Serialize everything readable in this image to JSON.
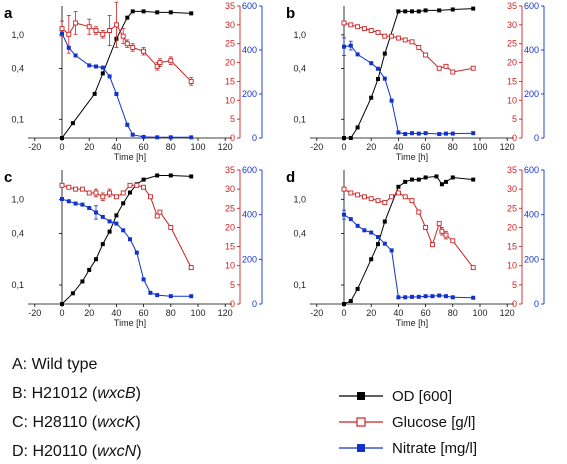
{
  "colors": {
    "od": "#000000",
    "glucose": "#cc2222",
    "nitrate": "#1133cc"
  },
  "legend": [
    {
      "key": "od",
      "label": "OD [600]",
      "marker": "filled-square"
    },
    {
      "key": "glucose",
      "label": "Glucose [g/l]",
      "marker": "open-square"
    },
    {
      "key": "nitrate",
      "label": "Nitrate [mg/l]",
      "marker": "filled-square"
    }
  ],
  "strain_key": [
    {
      "prefix": "A: Wild type",
      "gene": ""
    },
    {
      "prefix": "B: H21012 (",
      "gene": "wxcB",
      "suffix": ")"
    },
    {
      "prefix": "C: H28110 (",
      "gene": "wxcK",
      "suffix": ")"
    },
    {
      "prefix": "D: H20110 (",
      "gene": "wxcN",
      "suffix": ")"
    }
  ],
  "chart_data": [
    {
      "panel": "a",
      "type": "line",
      "xlabel": "Time [h]",
      "xlim": [
        -25,
        125
      ],
      "xticks": [
        "-20",
        "0",
        "20",
        "40",
        "60",
        "80",
        "100",
        "120"
      ],
      "y_od_ticks": [
        "0,1",
        "0,4",
        "1,0"
      ],
      "y_od_scale": "log",
      "y_od_lim": [
        0.06,
        2.2
      ],
      "y_glucose_ticks": [
        "0",
        "5",
        "10",
        "15",
        "20",
        "25",
        "30",
        "35"
      ],
      "y_glucose_lim": [
        0,
        35
      ],
      "y_nitrate_ticks": [
        "0",
        "200",
        "400",
        "600"
      ],
      "y_nitrate_lim": [
        0,
        600
      ],
      "series": [
        {
          "name": "OD [600]",
          "key": "od",
          "x": [
            0,
            8,
            24,
            30,
            40,
            48,
            52,
            60,
            70,
            80,
            95
          ],
          "y": [
            0.06,
            0.09,
            0.2,
            0.35,
            0.9,
            1.6,
            1.9,
            1.9,
            1.85,
            1.85,
            1.8
          ]
        },
        {
          "name": "Glucose [g/l]",
          "key": "glucose",
          "x": [
            0,
            5,
            10,
            20,
            25,
            30,
            35,
            40,
            45,
            48,
            52,
            60,
            70,
            72,
            80,
            95
          ],
          "y": [
            29,
            27.5,
            30.5,
            29.5,
            28.5,
            27.5,
            28.5,
            30,
            27,
            25,
            24,
            23,
            19,
            20,
            20.5,
            15
          ],
          "err": [
            2,
            5,
            3,
            2,
            1,
            1,
            4,
            6,
            2,
            1,
            1,
            1,
            1,
            1,
            1,
            1
          ]
        },
        {
          "name": "Nitrate [mg/l]",
          "key": "nitrate",
          "x": [
            0,
            5,
            10,
            20,
            25,
            30,
            35,
            40,
            48,
            52,
            60,
            70,
            80,
            95
          ],
          "y": [
            475,
            410,
            375,
            330,
            325,
            320,
            280,
            200,
            60,
            15,
            5,
            3,
            3,
            3
          ]
        }
      ]
    },
    {
      "panel": "b",
      "type": "line",
      "xlabel": "Time [h]",
      "xlim": [
        -25,
        125
      ],
      "xticks": [
        "-20",
        "0",
        "20",
        "40",
        "60",
        "80",
        "100",
        "120"
      ],
      "y_od_ticks": [
        "0,1",
        "0,4",
        "1,0"
      ],
      "y_od_scale": "log",
      "y_od_lim": [
        0.06,
        2.2
      ],
      "y_glucose_ticks": [
        "0",
        "5",
        "10",
        "15",
        "20",
        "25",
        "30",
        "35"
      ],
      "y_glucose_lim": [
        0,
        35
      ],
      "y_nitrate_ticks": [
        "0",
        "200",
        "400",
        "600"
      ],
      "y_nitrate_lim": [
        0,
        600
      ],
      "series": [
        {
          "name": "OD [600]",
          "key": "od",
          "x": [
            0,
            5,
            10,
            20,
            25,
            30,
            40,
            45,
            50,
            55,
            60,
            70,
            80,
            95
          ],
          "y": [
            0.06,
            0.06,
            0.08,
            0.18,
            0.3,
            0.6,
            1.9,
            1.9,
            1.9,
            1.9,
            1.95,
            1.95,
            2.0,
            2.05
          ]
        },
        {
          "name": "Glucose [g/l]",
          "key": "glucose",
          "x": [
            0,
            5,
            10,
            15,
            20,
            25,
            30,
            35,
            40,
            45,
            50,
            55,
            60,
            70,
            75,
            80,
            95
          ],
          "y": [
            30.5,
            30,
            29.5,
            29,
            28.5,
            28,
            27,
            27,
            26.5,
            26,
            25.5,
            24,
            22,
            18.5,
            19,
            17.5,
            18.5
          ],
          "err": [
            0,
            0,
            0,
            0,
            0,
            0,
            0,
            0,
            0,
            0,
            0,
            0,
            0,
            0,
            0,
            0,
            0
          ]
        },
        {
          "name": "Nitrate [mg/l]",
          "key": "nitrate",
          "x": [
            0,
            5,
            10,
            20,
            25,
            30,
            35,
            40,
            45,
            50,
            55,
            60,
            70,
            75,
            80,
            95
          ],
          "y": [
            415,
            420,
            380,
            340,
            315,
            270,
            170,
            25,
            18,
            22,
            20,
            22,
            18,
            20,
            20,
            22
          ],
          "err": [
            40,
            20,
            0,
            0,
            0,
            0,
            0,
            0,
            0,
            0,
            0,
            0,
            0,
            0,
            0,
            0
          ]
        }
      ]
    },
    {
      "panel": "c",
      "type": "line",
      "xlabel": "Time [h]",
      "xlim": [
        -25,
        125
      ],
      "xticks": [
        "-20",
        "0",
        "20",
        "40",
        "60",
        "80",
        "100",
        "120"
      ],
      "y_od_ticks": [
        "0,1",
        "0,4",
        "1,0"
      ],
      "y_od_scale": "log",
      "y_od_lim": [
        0.06,
        2.2
      ],
      "y_glucose_ticks": [
        "0",
        "5",
        "10",
        "15",
        "20",
        "25",
        "30",
        "35"
      ],
      "y_glucose_lim": [
        0,
        35
      ],
      "y_nitrate_ticks": [
        "0",
        "200",
        "400",
        "600"
      ],
      "y_nitrate_lim": [
        0,
        600
      ],
      "series": [
        {
          "name": "OD [600]",
          "key": "od",
          "x": [
            0,
            8,
            15,
            20,
            25,
            30,
            35,
            40,
            45,
            50,
            55,
            60,
            70,
            80,
            95
          ],
          "y": [
            0.06,
            0.08,
            0.11,
            0.15,
            0.2,
            0.3,
            0.42,
            0.65,
            0.9,
            1.2,
            1.5,
            1.7,
            1.9,
            1.9,
            1.85
          ]
        },
        {
          "name": "Glucose [g/l]",
          "key": "glucose",
          "x": [
            0,
            5,
            10,
            15,
            20,
            25,
            30,
            35,
            40,
            45,
            50,
            55,
            60,
            65,
            70,
            72,
            80,
            95
          ],
          "y": [
            31,
            30.5,
            30,
            30,
            29,
            29,
            28,
            29,
            28,
            29,
            31,
            31,
            30.5,
            28,
            23,
            24,
            20,
            9.5
          ],
          "err": [
            0,
            0,
            0,
            0,
            0,
            1,
            1,
            1,
            0,
            0,
            0,
            0,
            0,
            0,
            0,
            0,
            0,
            0
          ]
        },
        {
          "name": "Nitrate [mg/l]",
          "key": "nitrate",
          "x": [
            0,
            5,
            10,
            15,
            20,
            25,
            30,
            35,
            40,
            45,
            50,
            55,
            60,
            65,
            70,
            80,
            95
          ],
          "y": [
            470,
            460,
            450,
            445,
            430,
            410,
            390,
            370,
            360,
            330,
            290,
            230,
            110,
            50,
            40,
            35,
            35
          ],
          "err": [
            0,
            0,
            0,
            0,
            0,
            30,
            0,
            0,
            0,
            0,
            0,
            0,
            0,
            0,
            0,
            0,
            0
          ]
        }
      ]
    },
    {
      "panel": "d",
      "type": "line",
      "xlabel": "Time [h]",
      "xlim": [
        -25,
        125
      ],
      "xticks": [
        "-20",
        "0",
        "20",
        "40",
        "60",
        "80",
        "100",
        "120"
      ],
      "y_od_ticks": [
        "0,1",
        "0,4",
        "1,0"
      ],
      "y_od_scale": "log",
      "y_od_lim": [
        0.06,
        2.2
      ],
      "y_glucose_ticks": [
        "0",
        "5",
        "10",
        "15",
        "20",
        "25",
        "30",
        "35"
      ],
      "y_glucose_lim": [
        0,
        35
      ],
      "y_nitrate_ticks": [
        "0",
        "200",
        "400",
        "600"
      ],
      "y_nitrate_lim": [
        0,
        600
      ],
      "series": [
        {
          "name": "OD [600]",
          "key": "od",
          "x": [
            0,
            5,
            10,
            20,
            25,
            30,
            40,
            45,
            50,
            55,
            60,
            68,
            72,
            75,
            80,
            95
          ],
          "y": [
            0.06,
            0.065,
            0.09,
            0.2,
            0.3,
            0.55,
            1.4,
            1.6,
            1.7,
            1.7,
            1.8,
            1.85,
            1.5,
            1.6,
            1.8,
            1.7
          ]
        },
        {
          "name": "Glucose [g/l]",
          "key": "glucose",
          "x": [
            0,
            5,
            10,
            15,
            20,
            25,
            30,
            35,
            40,
            45,
            50,
            55,
            60,
            65,
            70,
            72,
            75,
            80,
            95
          ],
          "y": [
            30,
            29,
            28.5,
            28,
            27.5,
            27,
            26.5,
            28,
            29,
            28,
            27,
            24,
            20,
            15.5,
            21,
            19,
            18,
            16.5,
            9.5
          ],
          "err": [
            0,
            0,
            0,
            0,
            0,
            0,
            0,
            0,
            0,
            0,
            0,
            0,
            0,
            0,
            0,
            1,
            1,
            0,
            0
          ]
        },
        {
          "name": "Nitrate [mg/l]",
          "key": "nitrate",
          "x": [
            0,
            5,
            10,
            15,
            20,
            25,
            30,
            35,
            40,
            45,
            50,
            55,
            60,
            65,
            70,
            75,
            80,
            95
          ],
          "y": [
            400,
            380,
            350,
            330,
            320,
            300,
            270,
            240,
            30,
            30,
            32,
            32,
            35,
            35,
            38,
            35,
            30,
            28
          ],
          "err": [
            20,
            0,
            0,
            0,
            0,
            0,
            0,
            0,
            0,
            0,
            0,
            0,
            0,
            0,
            0,
            0,
            0,
            0
          ]
        }
      ]
    }
  ]
}
